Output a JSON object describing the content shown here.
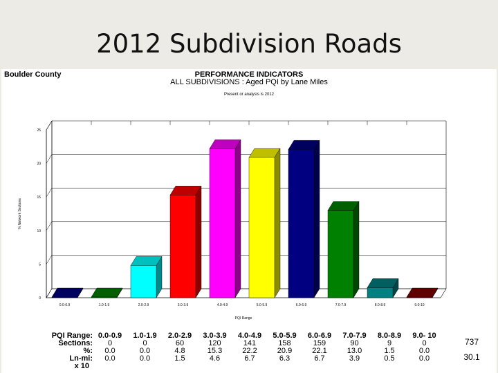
{
  "slide": {
    "title": "2012 Subdivision Roads"
  },
  "header": {
    "org": "Boulder County",
    "title": "PERFORMANCE INDICATORS",
    "subtitle": "ALL SUBDIVISIONS : Aged PQI by Lane Miles",
    "note": "Present or analysis is 2012"
  },
  "chart_data": {
    "type": "bar",
    "categories": [
      "0.0-0.9",
      "1.0-1.9",
      "2.0-2.9",
      "3.0-3.9",
      "4.0-4.9",
      "5.0-5.9",
      "6.0-6.9",
      "7.0-7.9",
      "8.0-8.9",
      "9.0-10"
    ],
    "values": [
      0.0,
      0.0,
      4.8,
      15.3,
      22.2,
      20.9,
      22.1,
      13.0,
      1.5,
      0.0
    ],
    "drawn_heights": [
      0.0,
      0.0,
      4.8,
      15.3,
      22.2,
      20.9,
      22.1,
      13.0,
      1.5,
      0.0
    ],
    "colors": [
      "#000080",
      "#008000",
      "#00ffff",
      "#ff0000",
      "#ff00ff",
      "#ffff00",
      "#000080",
      "#008000",
      "#008080",
      "#800000"
    ],
    "ylabel": "% Network Sections",
    "xlabel": "PQI Range",
    "ylim": [
      0,
      25
    ],
    "yticks": [
      "0",
      "5",
      "10",
      "15",
      "20",
      "25"
    ],
    "grid": true
  },
  "table": {
    "labels": {
      "range": "PQI Range:",
      "sections": "Sections:",
      "pct": "%:",
      "lnmi": "Ln-mi:",
      "scale": "x 10"
    },
    "range": [
      "0.0-0.9",
      "1.0-1.9",
      "2.0-2.9",
      "3.0-3.9",
      "4.0-4.9",
      "5.0-5.9",
      "6.0-6.9",
      "7.0-7.9",
      "8.0-8.9",
      "9.0- 10"
    ],
    "sections": [
      "0",
      "0",
      "60",
      "120",
      "141",
      "158",
      "159",
      "90",
      "9",
      "0"
    ],
    "pct": [
      "0.0",
      "0.0",
      "4.8",
      "15.3",
      "22.2",
      "20.9",
      "22.1",
      "13.0",
      "1.5",
      "0.0"
    ],
    "lnmi": [
      "0.0",
      "0.0",
      "1.5",
      "4.6",
      "6.7",
      "6.3",
      "6.7",
      "3.9",
      "0.5",
      "0.0"
    ],
    "total_sections": "737",
    "total_lnmi": "30.1"
  }
}
